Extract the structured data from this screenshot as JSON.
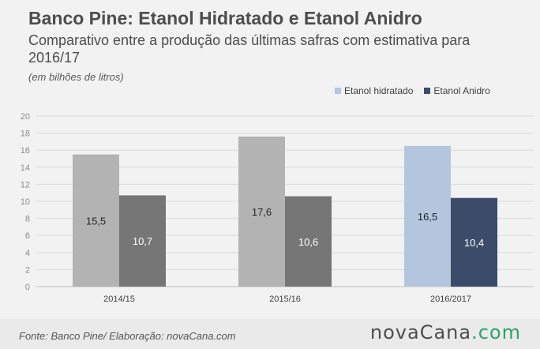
{
  "colors": {
    "hidratado_prev": "#b3b3b3",
    "anidro_prev": "#767676",
    "hidratado_est": "#b4c6de",
    "anidro_est": "#3a4c69",
    "axis_text": "#8c8c8c",
    "grid": "#d9d9d9",
    "logo_gray": "#4d4d4d",
    "logo_green": "#2ba46a"
  },
  "header": {
    "title": "Banco Pine: Etanol Hidratado e Etanol Anidro",
    "subtitle": "Comparativo entre a produção das últimas safras com estimativa para 2016/17",
    "unit_note": "(em bilhões de litros)"
  },
  "legend": {
    "items": [
      {
        "label": "Etanol hidratado",
        "color": "#b4c6de"
      },
      {
        "label": "Etanol Anidro",
        "color": "#3a4c69"
      }
    ]
  },
  "chart_data": {
    "type": "bar",
    "categories": [
      "2014/15",
      "2015/16",
      "2016/2017"
    ],
    "series": [
      {
        "name": "Etanol hidratado",
        "values": [
          15.5,
          17.6,
          16.5
        ],
        "labels": [
          "15,5",
          "17,6",
          "16,5"
        ]
      },
      {
        "name": "Etanol Anidro",
        "values": [
          10.7,
          10.6,
          10.4
        ],
        "labels": [
          "10,7",
          "10,6",
          "10,4"
        ]
      }
    ],
    "ylim": [
      0,
      20
    ],
    "yticks": [
      0,
      2,
      4,
      6,
      8,
      10,
      12,
      14,
      16,
      18,
      20
    ],
    "grid": true,
    "legend_position": "top-right"
  },
  "footer": {
    "source": "Fonte: Banco Pine/ Elaboração: novaCana.com",
    "logo_part1": "nova",
    "logo_part2": "Cana",
    "logo_part3": ".com"
  }
}
